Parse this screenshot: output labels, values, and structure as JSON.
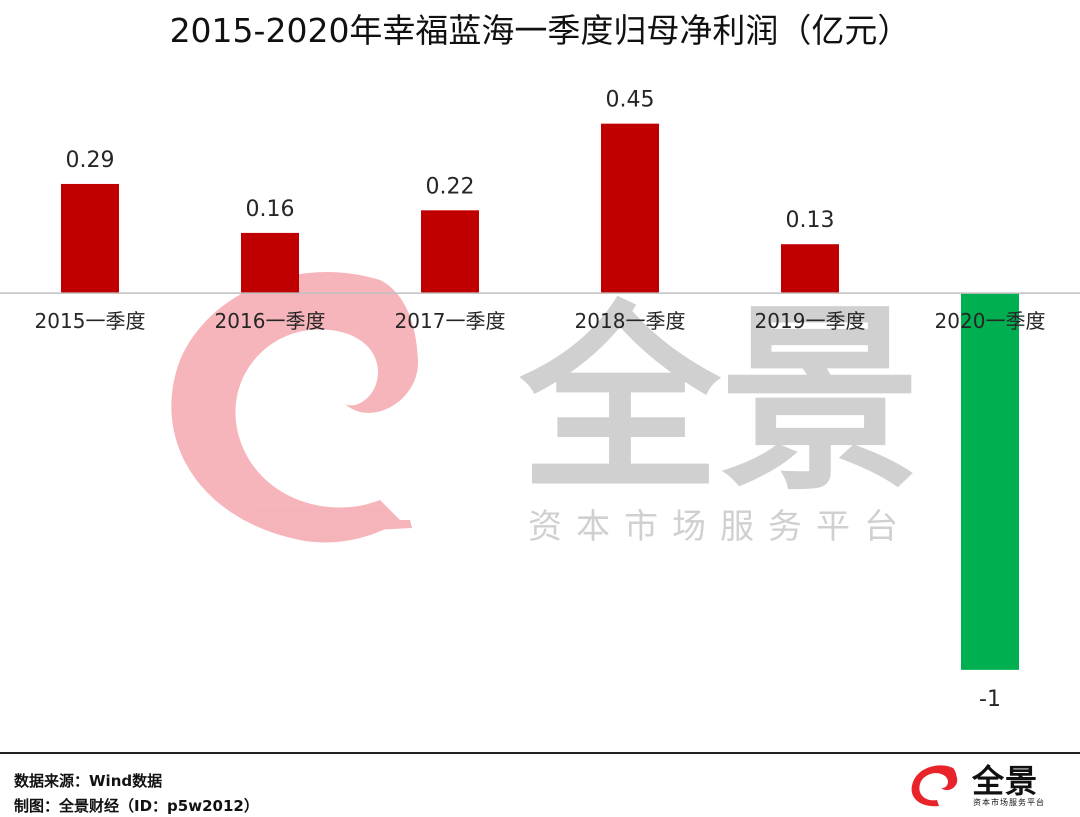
{
  "chart_data": {
    "type": "bar",
    "title": "2015-2020年幸福蓝海一季度归母净利润（亿元）",
    "categories": [
      "2015一季度",
      "2016一季度",
      "2017一季度",
      "2018一季度",
      "2019一季度",
      "2020一季度"
    ],
    "values": [
      0.29,
      0.16,
      0.22,
      0.45,
      0.13,
      -1
    ],
    "value_labels": [
      "0.29",
      "0.16",
      "0.22",
      "0.45",
      "0.13",
      "-1"
    ],
    "ylim": [
      -1.08,
      0.55
    ],
    "grid": false,
    "legend": "none",
    "colors": {
      "positive": "#c00000",
      "negative": "#00b050"
    }
  },
  "watermark": {
    "name": "全景",
    "slogan": "资本市场服务平台"
  },
  "footer": {
    "source": "数据来源：Wind数据",
    "credit": "制图：全景财经（ID：p5w2012）"
  },
  "brand": {
    "name": "全景",
    "slogan": "资本市场服务平台",
    "logo_color": "#e8242a"
  }
}
